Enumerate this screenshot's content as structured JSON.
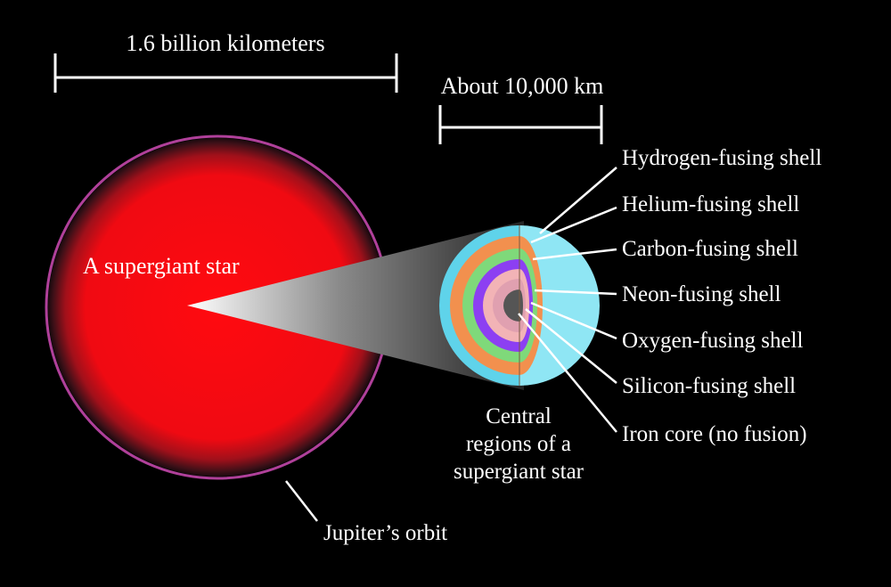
{
  "scale_bars": {
    "large": "1.6 billion kilometers",
    "small": "About 10,000 km"
  },
  "star": {
    "label": "A supergiant star",
    "orbit_label": "Jupiter’s orbit"
  },
  "core": {
    "caption_line1": "Central",
    "caption_line2": "regions of a",
    "caption_line3": "supergiant star"
  },
  "shells": [
    {
      "label": "Hydrogen-fusing shell",
      "color": "#8fe6f4"
    },
    {
      "label": "Helium-fusing shell",
      "color": "#5fd3ea"
    },
    {
      "label": "Carbon-fusing shell",
      "color": "#f2904e"
    },
    {
      "label": "Neon-fusing shell",
      "color": "#8c3ff2"
    },
    {
      "label": "Oxygen-fusing shell",
      "color": "#7fd97a"
    },
    {
      "label": "Silicon-fusing shell",
      "color": "#f2b3b6"
    },
    {
      "label": "Iron core (no fusion)",
      "color": "#555555"
    }
  ],
  "colors": {
    "background": "#000000",
    "star_red": "#ff0b12",
    "orbit": "#b0409a"
  }
}
